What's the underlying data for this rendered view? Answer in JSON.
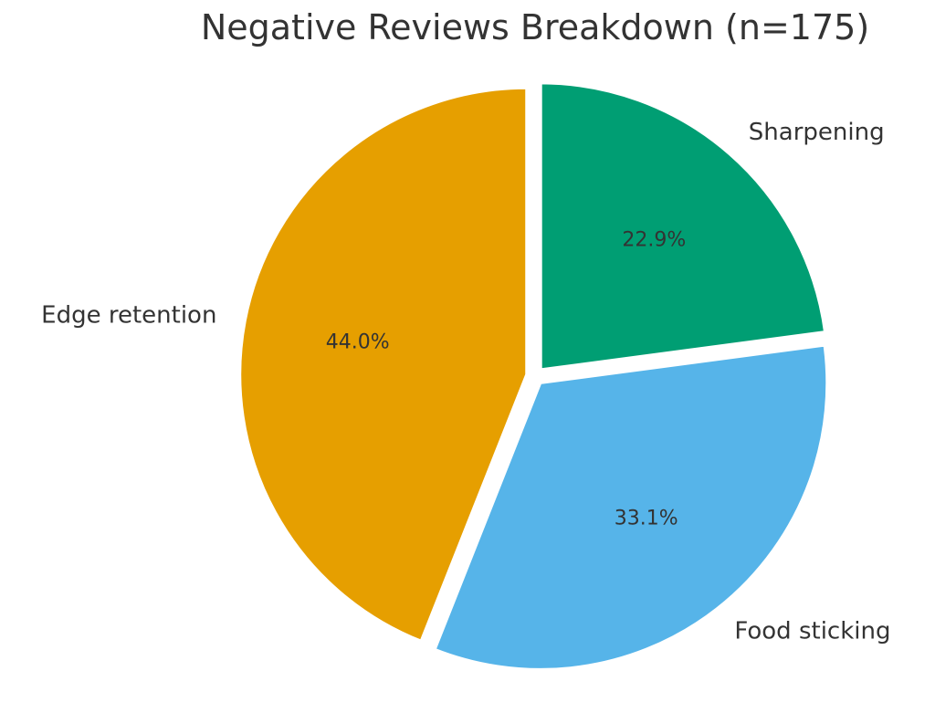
{
  "chart_data": {
    "type": "pie",
    "title": "Negative Reviews Breakdown (n=175)",
    "slices": [
      {
        "label": "Sharpening",
        "value": 22.9,
        "value_label": "22.9%",
        "color": "#009E73"
      },
      {
        "label": "Food sticking",
        "value": 33.1,
        "value_label": "33.1%",
        "color": "#56B4E9"
      },
      {
        "label": "Edge retention",
        "value": 44.0,
        "value_label": "44.0%",
        "color": "#E69F00"
      }
    ],
    "start_angle": "12 o'clock",
    "direction": "clockwise",
    "exploded": true,
    "legend": "none"
  }
}
